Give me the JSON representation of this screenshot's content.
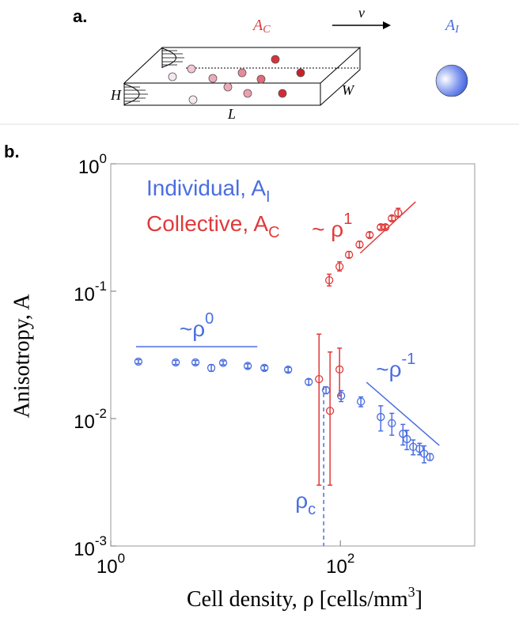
{
  "panel_a": {
    "label": "a.",
    "collective": {
      "text": "A",
      "sub": "C"
    },
    "velocity": "v",
    "individual": {
      "text": "A",
      "sub": "I"
    },
    "height": "H",
    "width": "W",
    "length": "L"
  },
  "chart_data": {
    "type": "scatter",
    "panel_label": "b.",
    "xlabel": {
      "text": "Cell density, ρ [cells/mm",
      "sup": "3",
      "after": "]"
    },
    "ylabel": "Anisotropy, A",
    "xscale": "log",
    "yscale": "log",
    "xlim": [
      1,
      1480
    ],
    "ylim": [
      0.001,
      1
    ],
    "xticks": [
      {
        "value": 1,
        "label": "10",
        "exponent": "0"
      },
      {
        "value": 100,
        "label": "10",
        "exponent": "2"
      }
    ],
    "yticks": [
      {
        "value": 1,
        "label": "10",
        "exponent": "0"
      },
      {
        "value": 0.1,
        "label": "10",
        "exponent": "-1"
      },
      {
        "value": 0.01,
        "label": "10",
        "exponent": "-2"
      },
      {
        "value": 0.001,
        "label": "10",
        "exponent": "-3"
      }
    ],
    "legend": "upper left",
    "series": [
      {
        "name": "Individual, A",
        "name_sub": "I",
        "color": "#4a6ee0",
        "x": [
          1.74,
          3.68,
          5.47,
          7.51,
          9.53,
          15.6,
          21.8,
          35.1,
          53,
          75,
          101.6,
          151,
          225,
          281,
          351,
          380,
          431,
          490,
          537,
          603
        ],
        "values": [
          0.028,
          0.0276,
          0.0276,
          0.025,
          0.0274,
          0.0259,
          0.025,
          0.0242,
          0.0194,
          0.0167,
          0.0151,
          0.0136,
          0.0103,
          0.0092,
          0.0076,
          0.0069,
          0.006,
          0.0058,
          0.0053,
          0.005
        ],
        "errors_minus": [
          0.001,
          0.001,
          0.001,
          0.0015,
          0.001,
          0.001,
          0.001,
          0.001,
          0.001,
          0.001,
          0.0015,
          0.0012,
          0.0023,
          0.0018,
          0.0014,
          0.0012,
          0.0008,
          0.0006,
          0.0008,
          0.0003
        ],
        "errors_plus": [
          0.001,
          0.001,
          0.001,
          0.0015,
          0.001,
          0.001,
          0.001,
          0.001,
          0.001,
          0.001,
          0.0015,
          0.0012,
          0.0023,
          0.0018,
          0.0014,
          0.0012,
          0.0008,
          0.0006,
          0.0008,
          0.0003
        ]
      },
      {
        "name": "Collective, A",
        "name_sub": "C",
        "color": "#e03a3a",
        "x": [
          65.2,
          81.3,
          98.4,
          80,
          98.4,
          119,
          147,
          180,
          225,
          247,
          281,
          319
        ],
        "values": [
          0.0204,
          0.0115,
          0.0243,
          0.122,
          0.156,
          0.193,
          0.232,
          0.276,
          0.318,
          0.318,
          0.373,
          0.412
        ],
        "errors_minus": [
          0.0174,
          0.0085,
          0.0092,
          0.012,
          0.012,
          0.01,
          0.012,
          0.012,
          0.012,
          0.012,
          0.015,
          0.03
        ],
        "errors_plus": [
          0.0256,
          0.0218,
          0.0114,
          0.014,
          0.014,
          0.012,
          0.014,
          0.014,
          0.014,
          0.014,
          0.017,
          0.035
        ]
      }
    ],
    "reference_lines": [
      {
        "color": "#4a6ee0",
        "x": [
          1.66,
          18.9
        ],
        "y": [
          0.0367,
          0.0367
        ],
        "label": "~ρ",
        "sup": "0"
      },
      {
        "color": "#e03a3a",
        "x": [
          149,
          452
        ],
        "y": [
          0.199,
          0.503
        ],
        "label": "~ ρ",
        "sup": "1"
      },
      {
        "color": "#4a6ee0",
        "x": [
          169,
          728
        ],
        "y": [
          0.0193,
          0.00615
        ],
        "label": "~ρ",
        "sup": "-1"
      }
    ],
    "critical": {
      "color": "#4a6ee0",
      "x": 71.6,
      "y": 0.018,
      "label": "ρ",
      "sub": "c"
    }
  }
}
